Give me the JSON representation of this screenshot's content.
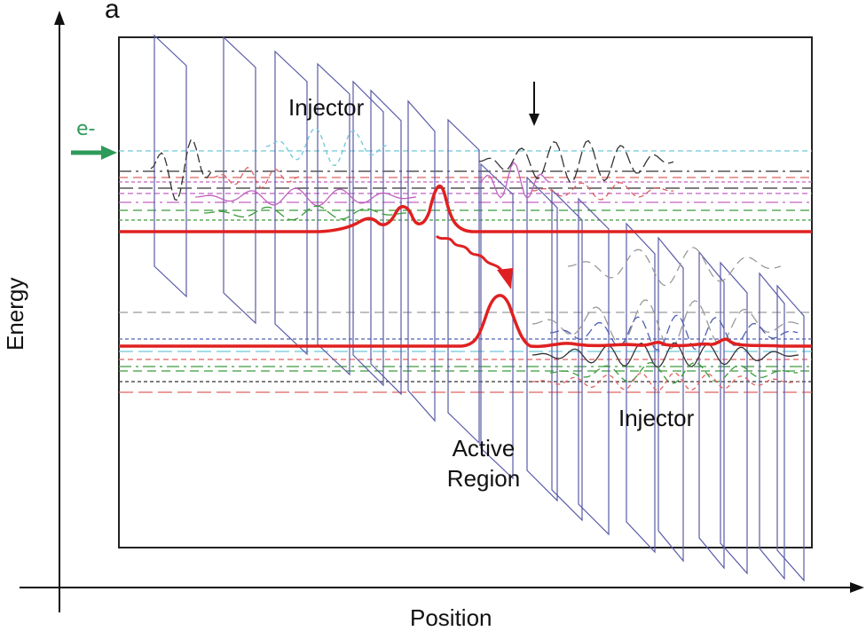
{
  "panel_label": "a",
  "axes": {
    "x_label": "Position",
    "y_label": "Energy"
  },
  "labels": {
    "injector_upper": "Injector",
    "injector_lower": "Injector",
    "active_region_line1": "Active",
    "active_region_line2": "Region",
    "electron": "e-"
  },
  "colors": {
    "well_outline": "#5a5aa8",
    "frame": "#222222",
    "highlight_level": "#e02020",
    "electron_arrow": "#2e9a5a",
    "level_palette": [
      "#6fc7d8",
      "#333333",
      "#c060c0",
      "#e06060",
      "#3a9a3a",
      "#5060b0",
      "#9a9a9a"
    ]
  }
}
